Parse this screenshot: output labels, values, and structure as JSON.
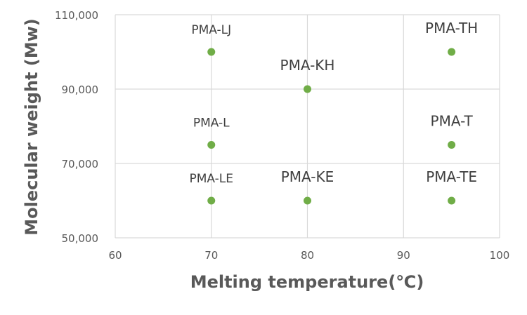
{
  "chart_data": {
    "type": "scatter",
    "xlabel": "Melting temperature(℃)",
    "ylabel": "Molecular weight (Mw)",
    "xlim": [
      60,
      100
    ],
    "ylim": [
      50000,
      110000
    ],
    "x_ticks": [
      60,
      70,
      80,
      90,
      100
    ],
    "y_ticks": [
      50000,
      70000,
      90000,
      110000
    ],
    "x_tick_labels": [
      "60",
      "70",
      "80",
      "90",
      "100"
    ],
    "y_tick_labels": [
      "50,000",
      "70,000",
      "90,000",
      "110,000"
    ],
    "grid": true,
    "marker_color": "#70AD47",
    "points": [
      {
        "label": "PMA-LJ",
        "x": 70,
        "y": 100000
      },
      {
        "label": "PMA-L",
        "x": 70,
        "y": 75000
      },
      {
        "label": "PMA-LE",
        "x": 70,
        "y": 60000
      },
      {
        "label": "PMA-KH",
        "x": 80,
        "y": 90000
      },
      {
        "label": "PMA-KE",
        "x": 80,
        "y": 60000
      },
      {
        "label": "PMA-TH",
        "x": 95,
        "y": 100000
      },
      {
        "label": "PMA-T",
        "x": 95,
        "y": 75000
      },
      {
        "label": "PMA-TE",
        "x": 95,
        "y": 60000
      }
    ]
  }
}
